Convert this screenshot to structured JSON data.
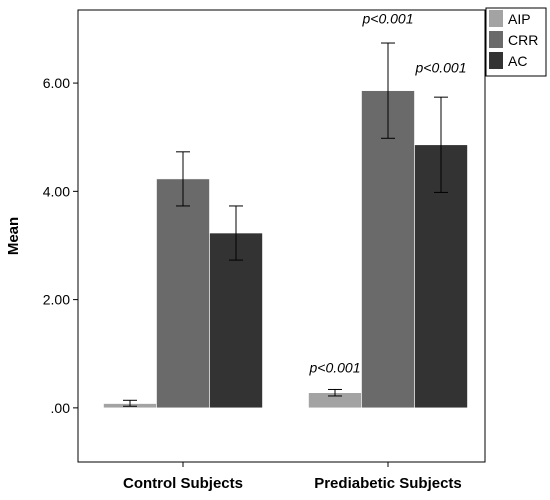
{
  "chart_data": {
    "type": "bar",
    "title": "",
    "xlabel": "",
    "ylabel": "Mean",
    "ylim": [
      -1.0,
      7.35
    ],
    "yticks": [
      0,
      2,
      4,
      6
    ],
    "ytick_labels": [
      ".00",
      "2.00",
      "4.00",
      "6.00"
    ],
    "grid": false,
    "legend_position": "top-right",
    "categories": [
      "Control Subjects",
      "Prediabetic Subjects"
    ],
    "series": [
      {
        "name": "AIP",
        "color": "#a3a3a3",
        "values": [
          0.08,
          0.28
        ],
        "error": [
          [
            0.03,
            0.14
          ],
          [
            0.22,
            0.34
          ]
        ]
      },
      {
        "name": "CRR",
        "color": "#6a6a6a",
        "values": [
          4.23,
          5.86
        ],
        "error": [
          [
            3.73,
            4.73
          ],
          [
            4.98,
            6.74
          ]
        ]
      },
      {
        "name": "AC",
        "color": "#333333",
        "values": [
          3.23,
          4.86
        ],
        "error": [
          [
            2.73,
            3.73
          ],
          [
            3.98,
            5.74
          ]
        ]
      }
    ],
    "annotations": [
      {
        "text": "p<0.001",
        "category": 1,
        "series": 0,
        "y": 0.65
      },
      {
        "text": "p<0.001",
        "category": 1,
        "series": 1,
        "y": 7.1
      },
      {
        "text": "p<0.001",
        "category": 1,
        "series": 2,
        "y": 6.2
      }
    ]
  }
}
